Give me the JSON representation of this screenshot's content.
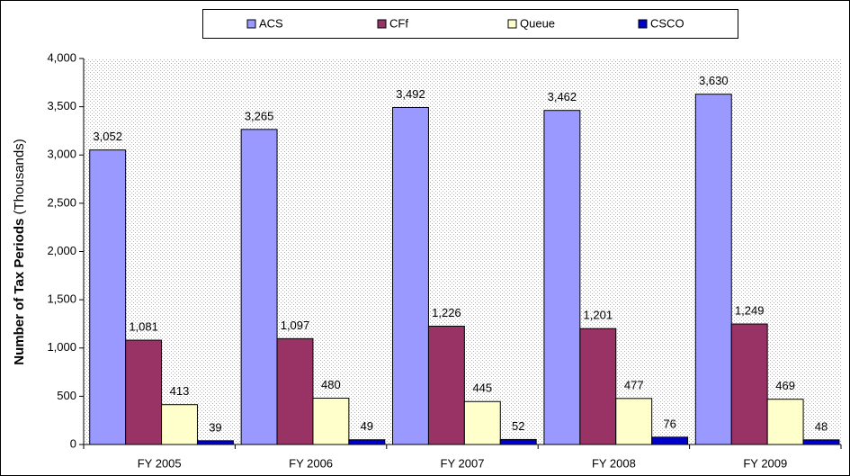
{
  "chart_data": {
    "type": "bar",
    "ylabel": "Number of Tax Periods",
    "ylabel_note": "(Thousands)",
    "categories": [
      "FY 2005",
      "FY 2006",
      "FY 2007",
      "FY 2008",
      "FY 2009"
    ],
    "series": [
      {
        "name": "ACS",
        "color": "#9999ff",
        "values": [
          3052,
          3265,
          3492,
          3462,
          3630
        ],
        "value_labels": [
          "3,052",
          "3,265",
          "3,492",
          "3,462",
          "3,630"
        ]
      },
      {
        "name": "CFf",
        "color": "#993366",
        "values": [
          1081,
          1097,
          1226,
          1201,
          1249
        ],
        "value_labels": [
          "1,081",
          "1,097",
          "1,226",
          "1,201",
          "1,249"
        ]
      },
      {
        "name": "Queue",
        "color": "#ffffcc",
        "values": [
          413,
          480,
          445,
          477,
          469
        ]
      },
      {
        "name": "CSCO",
        "color": "#0000cc",
        "values": [
          39,
          49,
          52,
          76,
          48
        ]
      }
    ],
    "ylim": [
      0,
      4000
    ],
    "yticks": [
      0,
      500,
      {
        "value": 1000,
        "label": "1,000"
      },
      {
        "value": 1500,
        "label": "1,500"
      },
      {
        "value": 2000,
        "label": "2,000"
      },
      {
        "value": 2500,
        "label": "2,500"
      },
      {
        "value": 3000,
        "label": "3,000"
      },
      {
        "value": 3500,
        "label": "3,500"
      },
      {
        "value": 4000,
        "label": "4,000"
      }
    ]
  }
}
